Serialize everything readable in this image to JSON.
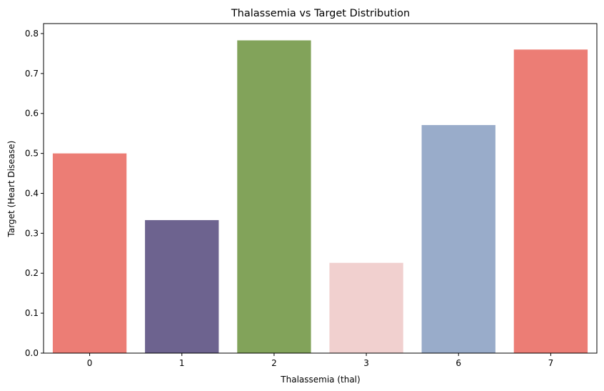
{
  "chart_data": {
    "type": "bar",
    "title": "Thalassemia vs Target Distribution",
    "xlabel": "Thalassemia (thal)",
    "ylabel": "Target (Heart Disease)",
    "categories": [
      "0",
      "1",
      "2",
      "3",
      "6",
      "7"
    ],
    "values": [
      0.5,
      0.333,
      0.783,
      0.226,
      0.571,
      0.76
    ],
    "colors": [
      "#ec7d75",
      "#6d638f",
      "#82a35a",
      "#f1d0cf",
      "#99acca",
      "#ec7d75"
    ],
    "ylim": [
      0,
      0.825
    ],
    "yticks": [
      "0.0",
      "0.1",
      "0.2",
      "0.3",
      "0.4",
      "0.5",
      "0.6",
      "0.7",
      "0.8"
    ],
    "grid": false,
    "legend": "none"
  }
}
